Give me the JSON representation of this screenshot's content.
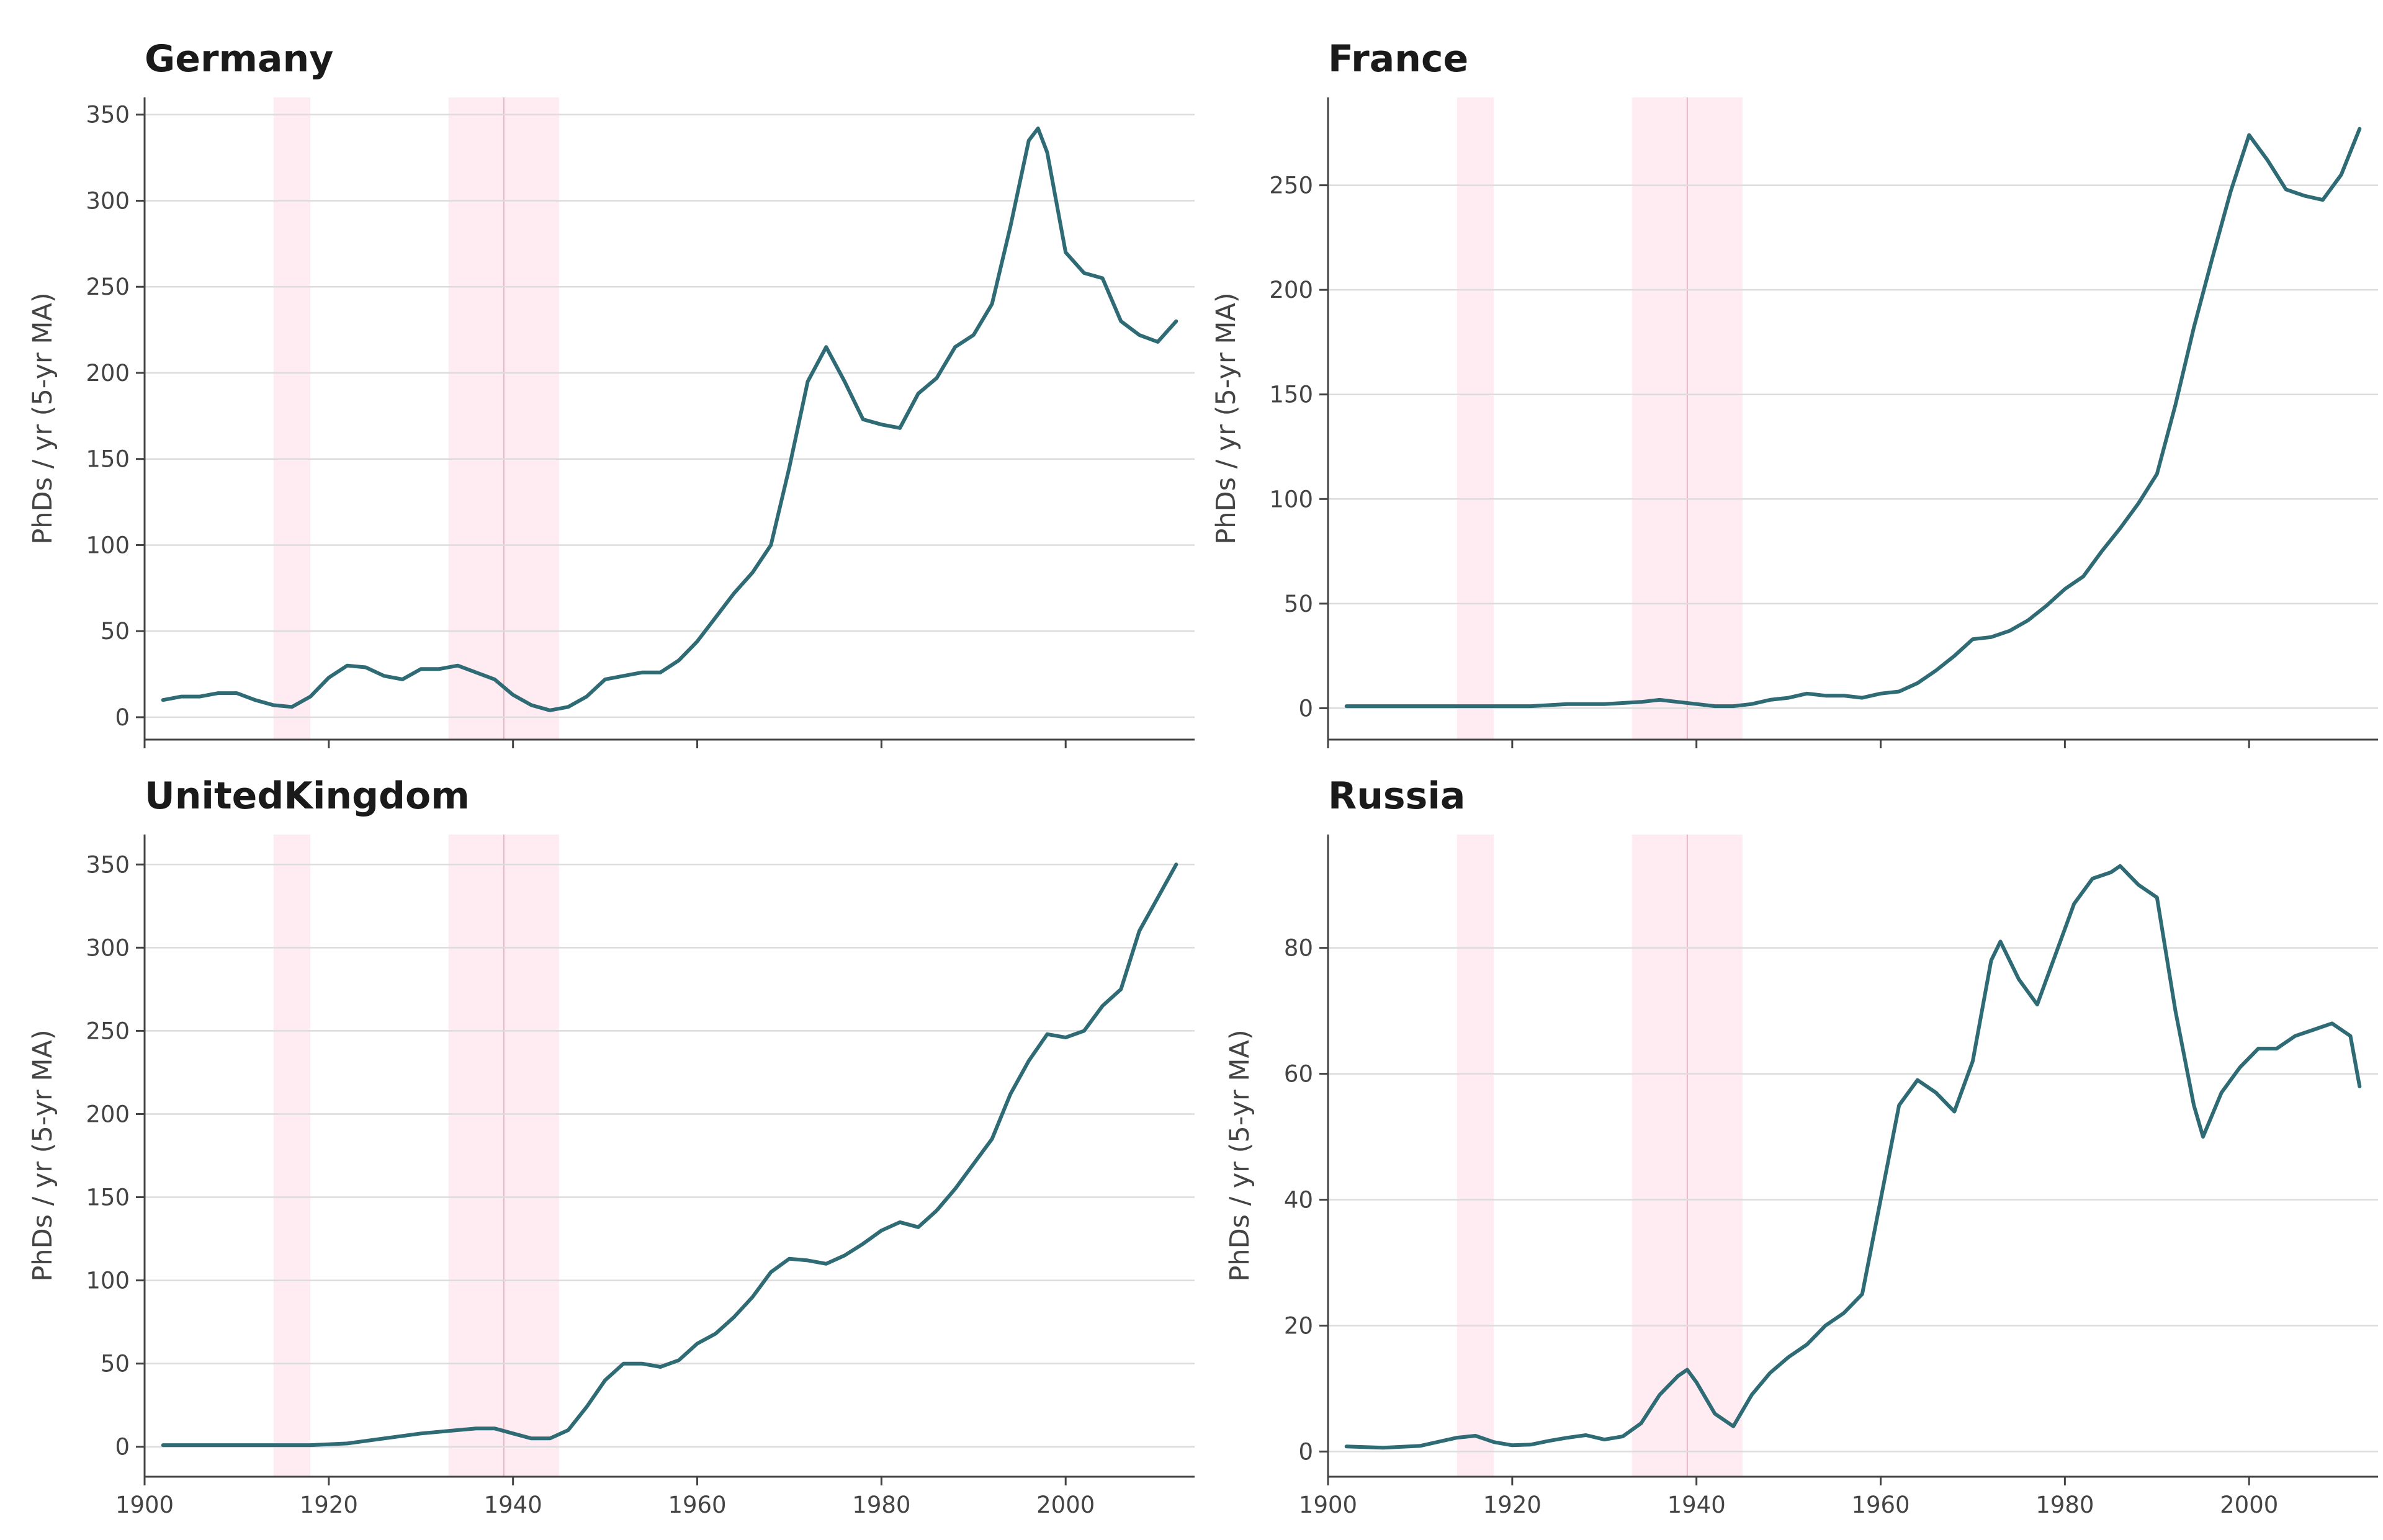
{
  "colors": {
    "line": "#2e6b75",
    "shade": "#ffdce7",
    "grid": "#dcdcdc",
    "axis": "#444444"
  },
  "chart_data": [
    {
      "type": "line",
      "title": "Germany",
      "ylabel": "PhDs / yr (5-yr MA)",
      "xlabel": "",
      "xlim": [
        1900,
        2014
      ],
      "ylim": [
        -13,
        360
      ],
      "xticks": [
        1900,
        1920,
        1940,
        1960,
        1980,
        2000
      ],
      "yticks": [
        0,
        50,
        100,
        150,
        200,
        250,
        300,
        350
      ],
      "grid": true,
      "shaded_periods": [
        [
          1914,
          1918
        ],
        [
          1933,
          1945
        ]
      ],
      "marker_year": 1939,
      "x": [
        1902,
        1904,
        1906,
        1908,
        1910,
        1912,
        1914,
        1916,
        1918,
        1920,
        1922,
        1924,
        1926,
        1928,
        1930,
        1932,
        1934,
        1936,
        1938,
        1940,
        1942,
        1944,
        1946,
        1948,
        1950,
        1952,
        1954,
        1956,
        1958,
        1960,
        1962,
        1964,
        1966,
        1968,
        1970,
        1972,
        1974,
        1976,
        1978,
        1980,
        1982,
        1984,
        1986,
        1988,
        1990,
        1992,
        1994,
        1996,
        1997,
        1998,
        2000,
        2002,
        2004,
        2006,
        2008,
        2010,
        2012
      ],
      "y": [
        10,
        12,
        12,
        14,
        14,
        10,
        7,
        6,
        12,
        23,
        30,
        29,
        24,
        22,
        28,
        28,
        30,
        26,
        22,
        13,
        7,
        4,
        6,
        12,
        22,
        24,
        26,
        26,
        33,
        44,
        58,
        72,
        84,
        100,
        145,
        195,
        215,
        195,
        173,
        170,
        168,
        188,
        197,
        215,
        222,
        240,
        285,
        335,
        342,
        328,
        270,
        258,
        255,
        230,
        222,
        218,
        230
      ]
    },
    {
      "type": "line",
      "title": "France",
      "ylabel": "PhDs / yr (5-yr MA)",
      "xlabel": "",
      "xlim": [
        1900,
        2014
      ],
      "ylim": [
        -15,
        292
      ],
      "xticks": [
        1900,
        1920,
        1940,
        1960,
        1980,
        2000
      ],
      "yticks": [
        0,
        50,
        100,
        150,
        200,
        250
      ],
      "grid": true,
      "shaded_periods": [
        [
          1914,
          1918
        ],
        [
          1933,
          1945
        ]
      ],
      "marker_year": 1939,
      "x": [
        1902,
        1906,
        1910,
        1914,
        1918,
        1922,
        1926,
        1930,
        1934,
        1936,
        1938,
        1940,
        1942,
        1944,
        1946,
        1948,
        1950,
        1952,
        1954,
        1956,
        1958,
        1960,
        1962,
        1964,
        1966,
        1968,
        1970,
        1972,
        1974,
        1976,
        1978,
        1980,
        1982,
        1984,
        1986,
        1988,
        1990,
        1992,
        1994,
        1996,
        1998,
        2000,
        2002,
        2004,
        2006,
        2008,
        2010,
        2012
      ],
      "y": [
        1,
        1,
        1,
        1,
        1,
        1,
        2,
        2,
        3,
        4,
        3,
        2,
        1,
        1,
        2,
        4,
        5,
        7,
        6,
        6,
        5,
        7,
        8,
        12,
        18,
        25,
        33,
        34,
        37,
        42,
        49,
        57,
        63,
        75,
        86,
        98,
        112,
        145,
        182,
        215,
        247,
        274,
        262,
        248,
        245,
        243,
        255,
        277
      ]
    },
    {
      "type": "line",
      "title": "UnitedKingdom",
      "ylabel": "PhDs / yr (5-yr MA)",
      "xlabel": "",
      "xlim": [
        1900,
        2014
      ],
      "ylim": [
        -18,
        368
      ],
      "xticks": [
        1900,
        1920,
        1940,
        1960,
        1980,
        2000
      ],
      "yticks": [
        0,
        50,
        100,
        150,
        200,
        250,
        300,
        350
      ],
      "grid": true,
      "shaded_periods": [
        [
          1914,
          1918
        ],
        [
          1933,
          1945
        ]
      ],
      "marker_year": 1939,
      "x": [
        1902,
        1906,
        1910,
        1914,
        1918,
        1922,
        1926,
        1930,
        1934,
        1936,
        1938,
        1940,
        1942,
        1944,
        1946,
        1948,
        1950,
        1952,
        1954,
        1956,
        1958,
        1960,
        1962,
        1964,
        1966,
        1968,
        1970,
        1972,
        1974,
        1976,
        1978,
        1980,
        1982,
        1984,
        1986,
        1988,
        1990,
        1992,
        1994,
        1996,
        1998,
        2000,
        2002,
        2004,
        2006,
        2008,
        2010,
        2012
      ],
      "y": [
        1,
        1,
        1,
        1,
        1,
        2,
        5,
        8,
        10,
        11,
        11,
        8,
        5,
        5,
        10,
        24,
        40,
        50,
        50,
        48,
        52,
        62,
        68,
        78,
        90,
        105,
        113,
        112,
        110,
        115,
        122,
        130,
        135,
        132,
        142,
        155,
        170,
        185,
        212,
        232,
        248,
        246,
        250,
        265,
        275,
        310,
        330,
        350
      ]
    },
    {
      "type": "line",
      "title": "Russia",
      "ylabel": "PhDs / yr (5-yr MA)",
      "xlabel": "",
      "xlim": [
        1900,
        2014
      ],
      "ylim": [
        -4,
        98
      ],
      "xticks": [
        1900,
        1920,
        1940,
        1960,
        1980,
        2000
      ],
      "yticks": [
        0,
        20,
        40,
        60,
        80
      ],
      "grid": true,
      "shaded_periods": [
        [
          1914,
          1918
        ],
        [
          1933,
          1945
        ]
      ],
      "marker_year": 1939,
      "x": [
        1902,
        1906,
        1910,
        1914,
        1916,
        1918,
        1920,
        1922,
        1924,
        1926,
        1928,
        1930,
        1932,
        1934,
        1936,
        1938,
        1939,
        1940,
        1942,
        1944,
        1946,
        1948,
        1950,
        1952,
        1954,
        1956,
        1958,
        1960,
        1962,
        1964,
        1966,
        1968,
        1970,
        1972,
        1973,
        1975,
        1977,
        1979,
        1981,
        1983,
        1985,
        1986,
        1988,
        1990,
        1992,
        1994,
        1995,
        1997,
        1999,
        2001,
        2003,
        2005,
        2007,
        2009,
        2011,
        2012
      ],
      "y": [
        0.8,
        0.6,
        0.9,
        2.2,
        2.5,
        1.5,
        1.0,
        1.1,
        1.7,
        2.2,
        2.6,
        1.9,
        2.4,
        4.5,
        9,
        12,
        13,
        11,
        6,
        4,
        9,
        12.5,
        15,
        17,
        20,
        22,
        25,
        40,
        55,
        59,
        57,
        54,
        62,
        78,
        81,
        75,
        71,
        79,
        87,
        91,
        92,
        93,
        90,
        88,
        70,
        55,
        50,
        57,
        61,
        64,
        64,
        66,
        67,
        68,
        66,
        58
      ]
    }
  ]
}
